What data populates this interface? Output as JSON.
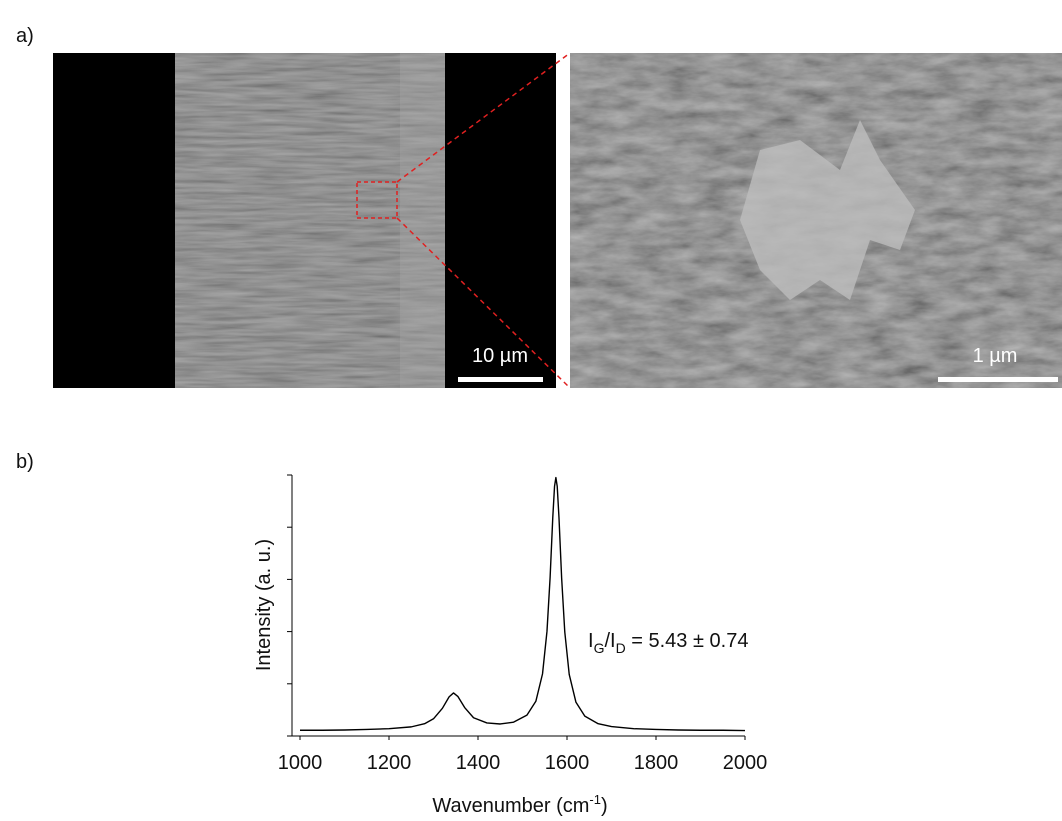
{
  "panel_labels": [
    "a)",
    "b)"
  ],
  "images": [
    {
      "scale_bar": "10 µm"
    },
    {
      "scale_bar": "1 µm"
    }
  ],
  "chart_data": {
    "type": "line",
    "x_label": [
      "Wavenumber  (cm",
      "-1",
      ")"
    ],
    "y_label": "Intensity (a. u.)",
    "annotation": [
      "I",
      "G",
      "/I",
      "D",
      " = 5.43 ± 0.74"
    ],
    "x": [
      1000,
      1050,
      1100,
      1150,
      1200,
      1250,
      1280,
      1300,
      1320,
      1335,
      1345,
      1355,
      1370,
      1390,
      1420,
      1450,
      1480,
      1510,
      1530,
      1545,
      1555,
      1562,
      1568,
      1572,
      1575,
      1578,
      1582,
      1588,
      1595,
      1605,
      1620,
      1640,
      1670,
      1700,
      1750,
      1800,
      1850,
      1900,
      1950,
      2000
    ],
    "values": [
      0.022,
      0.022,
      0.023,
      0.025,
      0.028,
      0.035,
      0.047,
      0.066,
      0.106,
      0.15,
      0.165,
      0.151,
      0.109,
      0.07,
      0.05,
      0.046,
      0.053,
      0.08,
      0.133,
      0.238,
      0.401,
      0.606,
      0.836,
      0.957,
      0.99,
      0.957,
      0.836,
      0.604,
      0.399,
      0.236,
      0.13,
      0.076,
      0.047,
      0.036,
      0.028,
      0.025,
      0.023,
      0.022,
      0.022,
      0.021
    ],
    "color": "#000000",
    "xlim": [
      1000,
      2000
    ],
    "xticks": [
      1000,
      1200,
      1400,
      1600,
      1800,
      2000
    ],
    "ylim": [
      0,
      1
    ],
    "yticks": [
      0,
      0.2,
      0.4,
      0.6,
      0.8,
      1.0
    ]
  }
}
